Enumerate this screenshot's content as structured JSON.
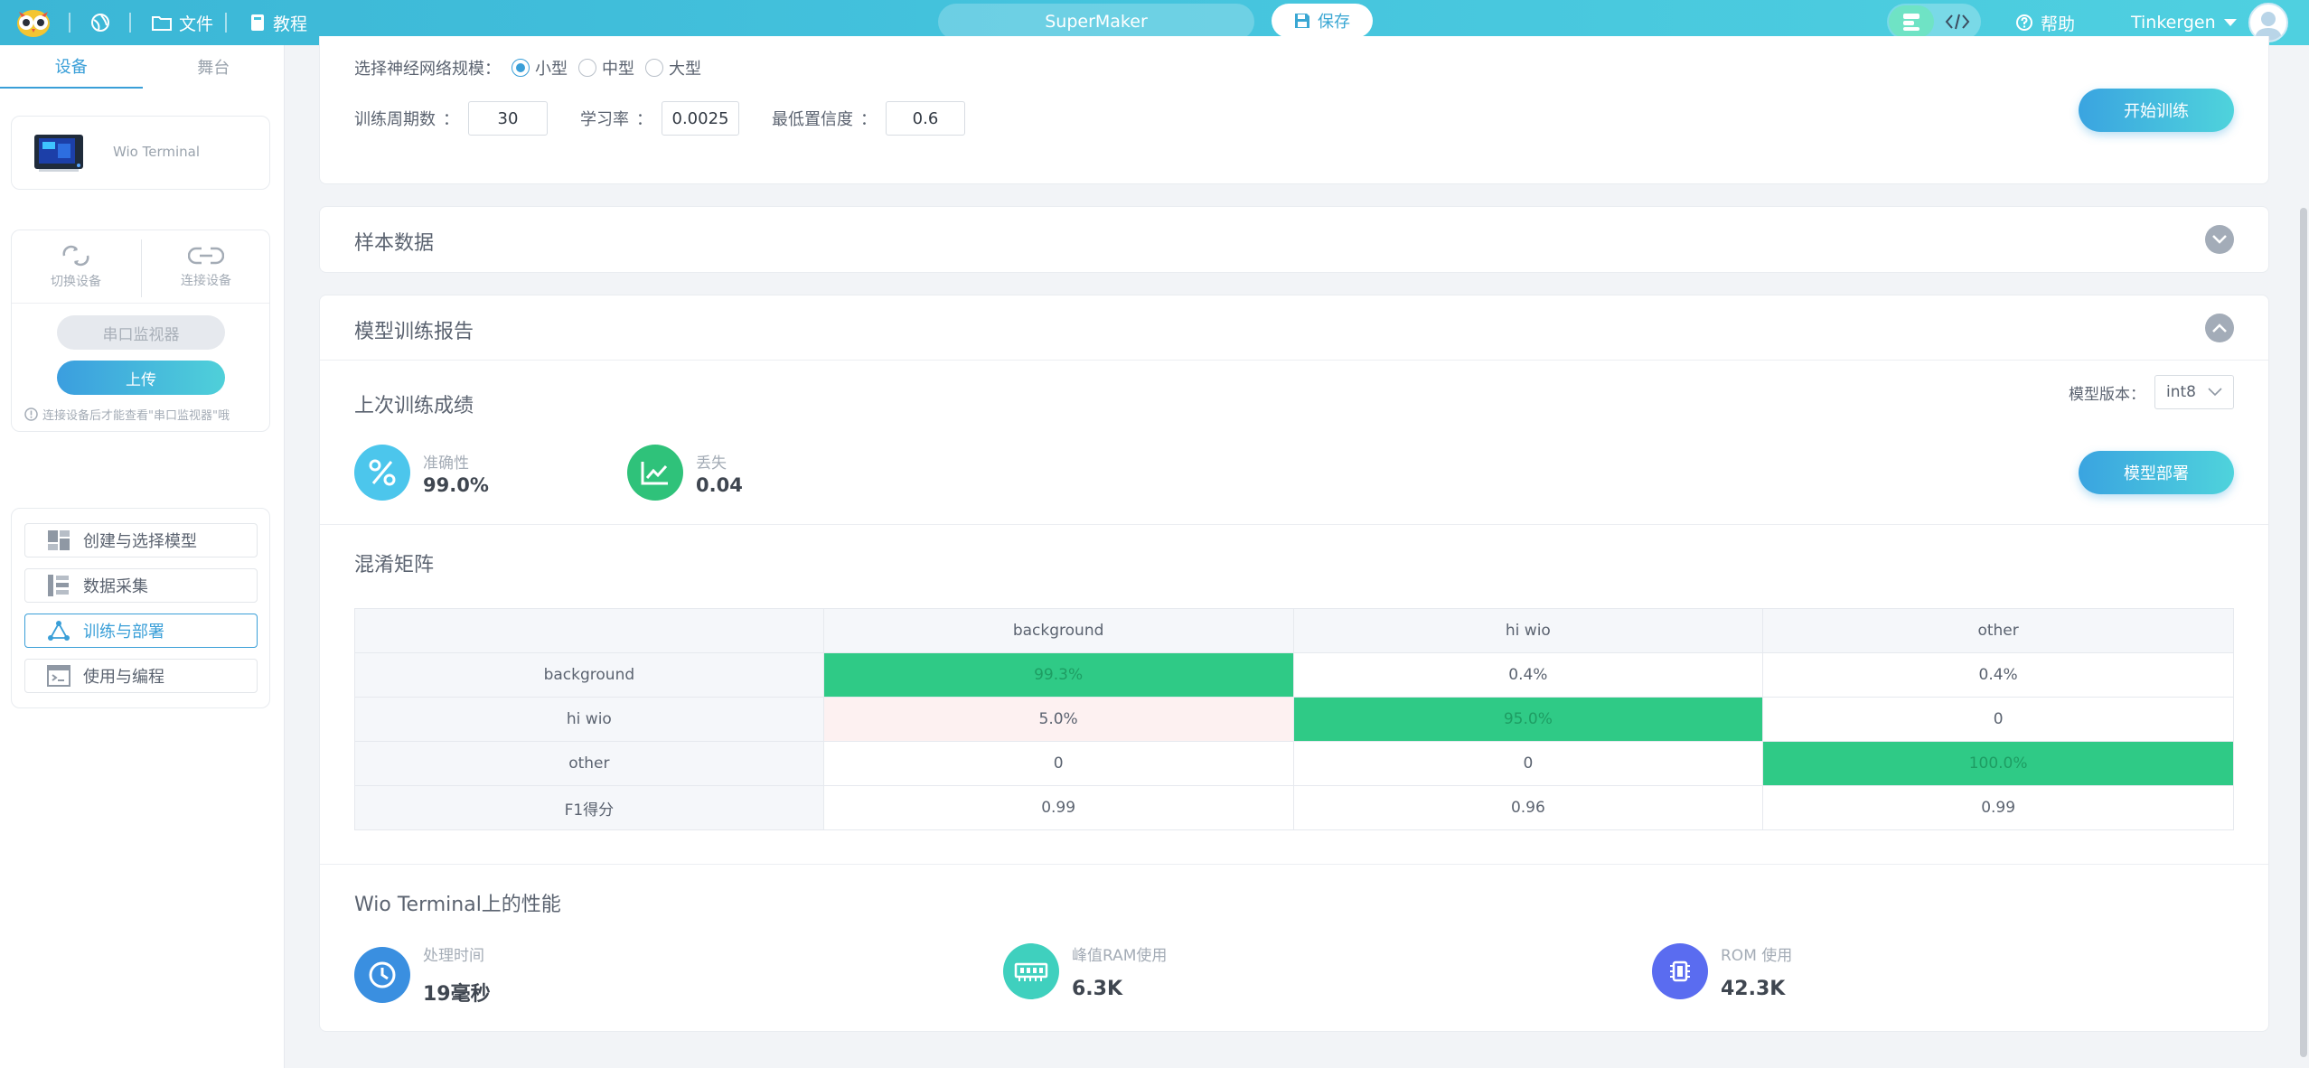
{
  "topbar": {
    "menu_file": "文件",
    "menu_tutorial": "教程",
    "project_name": "SuperMaker",
    "save_label": "保存",
    "help_label": "帮助",
    "username": "Tinkergen"
  },
  "sidebar": {
    "tabs": [
      "设备",
      "舞台"
    ],
    "device_name": "Wio Terminal",
    "switch_device": "切换设备",
    "connect_device": "连接设备",
    "serial_monitor": "串口监视器",
    "upload": "上传",
    "hint": "连接设备后才能查看\"串口监视器\"哦",
    "nav": [
      {
        "label": "创建与选择模型",
        "icon": "dashboard-icon",
        "active": false
      },
      {
        "label": "数据采集",
        "icon": "data-collect-icon",
        "active": false
      },
      {
        "label": "训练与部署",
        "icon": "network-icon",
        "active": true
      },
      {
        "label": "使用与编程",
        "icon": "code-window-icon",
        "active": false
      }
    ]
  },
  "params": {
    "network_size_label": "选择神经网络规模：",
    "sizes": [
      "小型",
      "中型",
      "大型"
    ],
    "selected_size": "小型",
    "epochs_label": "训练周期数",
    "epochs_value": "30",
    "lr_label": "学习率",
    "lr_value": "0.0025",
    "confidence_label": "最低置信度",
    "confidence_value": "0.6",
    "colon": "：",
    "start_training": "开始训练"
  },
  "sample_data": {
    "title": "样本数据"
  },
  "report": {
    "title": "模型训练报告",
    "last_result_title": "上次训练成绩",
    "version_label": "模型版本：",
    "version_value": "int8",
    "accuracy_label": "准确性",
    "accuracy_value": "99.0%",
    "loss_label": "丢失",
    "loss_value": "0.04",
    "deploy_button": "模型部署",
    "confusion_title": "混淆矩阵",
    "confusion": {
      "columns": [
        "",
        "background",
        "hi wio",
        "other"
      ],
      "rows": [
        {
          "label": "background",
          "cells": [
            "99.3%",
            "0.4%",
            "0.4%"
          ]
        },
        {
          "label": "hi wio",
          "cells": [
            "5.0%",
            "95.0%",
            "0"
          ]
        },
        {
          "label": "other",
          "cells": [
            "0",
            "0",
            "100.0%"
          ]
        },
        {
          "label": "F1得分",
          "cells": [
            "0.99",
            "0.96",
            "0.99"
          ]
        }
      ]
    },
    "perf_title": "Wio Terminal上的性能",
    "perf": [
      {
        "label": "处理时间",
        "value": "19毫秒",
        "icon": "clock-icon",
        "color": "#3a8fe0"
      },
      {
        "label": "峰值RAM使用",
        "value": "6.3K",
        "icon": "ram-icon",
        "color": "#3fd0be"
      },
      {
        "label": "ROM 使用",
        "value": "42.3K",
        "icon": "chip-icon",
        "color": "#5a6cf0"
      }
    ]
  },
  "colors": {
    "accent": "#3a9fd8",
    "topbar": "#44c3dd",
    "highlight_green": "#2fca86",
    "accuracy_icon": "#4cc6ec",
    "loss_icon": "#2fc27a"
  }
}
